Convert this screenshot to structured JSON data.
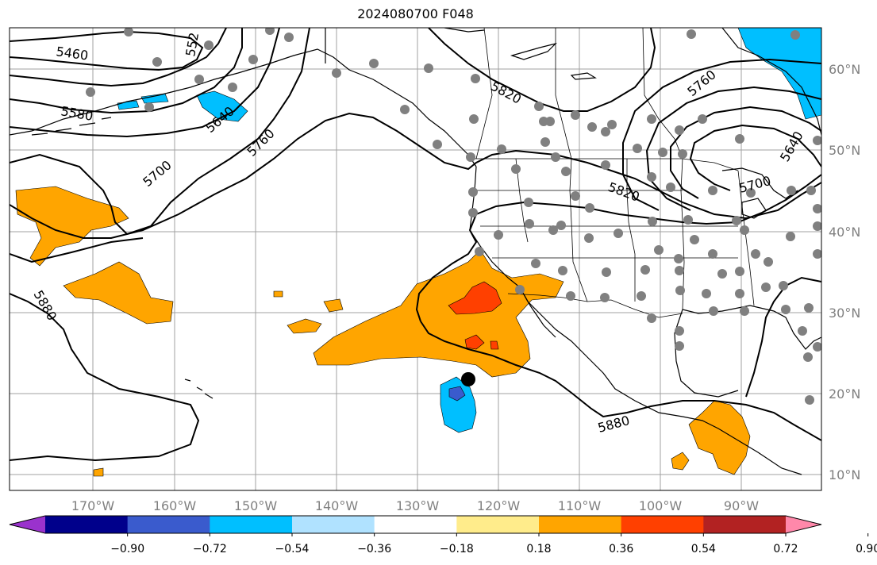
{
  "title": "2024080700 F048",
  "lon_labels": [
    "170°W",
    "160°W",
    "150°W",
    "140°W",
    "130°W",
    "120°W",
    "110°W",
    "100°W",
    "90°W"
  ],
  "lat_labels": [
    "60°N",
    "50°N",
    "40°N",
    "30°N",
    "20°N",
    "10°N"
  ],
  "contour_labels": [
    "5460",
    "552",
    "5580",
    "5640",
    "5700",
    "5760",
    "5820",
    "5760",
    "5640",
    "5700",
    "5820",
    "5880",
    "5880"
  ],
  "colorbar": {
    "colors": [
      "#9a32cd",
      "#00008b",
      "#3a5bcd",
      "#00bfff",
      "#b0e2ff",
      "#ffffff",
      "#ffec8b",
      "#ffa500",
      "#ff4000",
      "#b22222",
      "#ff88aa"
    ],
    "tick_labels": [
      "−0.90",
      "−0.72",
      "−0.54",
      "−0.36",
      "−0.18",
      "0.18",
      "0.36",
      "0.54",
      "0.72",
      "0.90"
    ]
  },
  "colors": {
    "land_edge": "#000000",
    "grid": "#a0a0a0",
    "station": "#808080",
    "positive": "#ffa500",
    "strong_positive": "#ff4000",
    "negative": "#00bfff"
  }
}
